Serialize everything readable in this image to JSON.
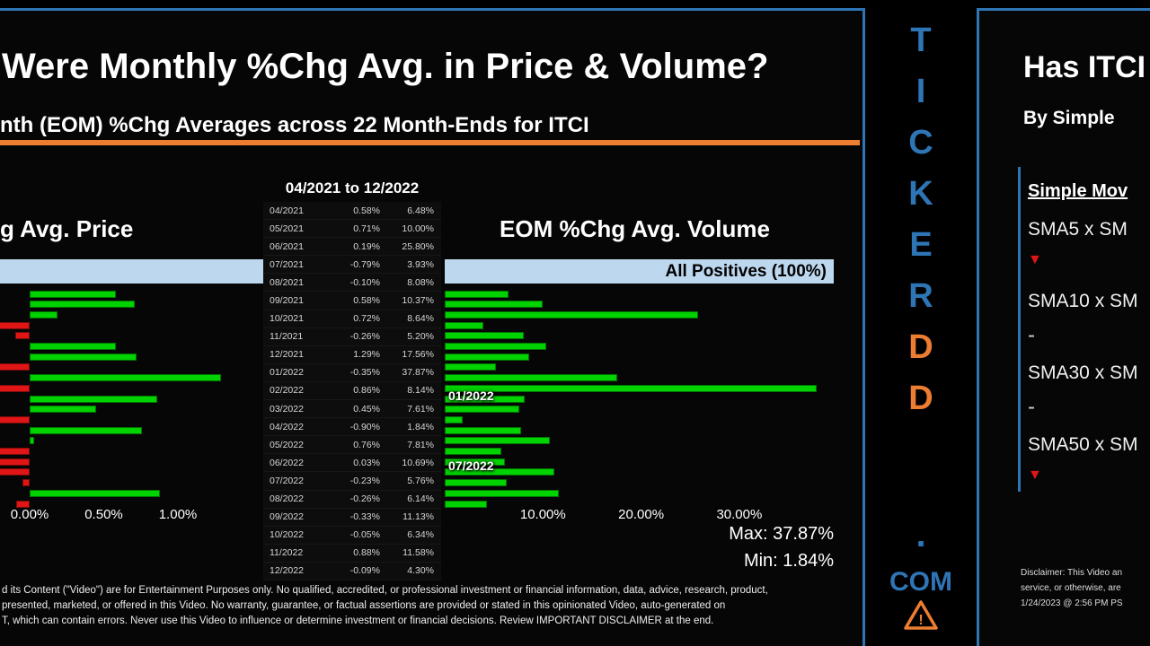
{
  "colors": {
    "accent_blue": "#2E75B6",
    "orange": "#ED7D31",
    "bar_green": "#00D300",
    "bar_red": "#E01515",
    "band_blue": "#BDD7EE"
  },
  "left_panel": {
    "title": "Were Monthly %Chg Avg. in Price & Volume?",
    "subtitle": "nth (EOM) %Chg Averages across 22 Month-Ends for ITCI",
    "table_title": "04/2021 to 12/2022",
    "price_chart_title": "g Avg. Price",
    "volume_chart_title": "EOM %Chg Avg. Volume",
    "volume_band_label": "All Positives (100%)",
    "price_axis_ticks": [
      "0.00%",
      "0.50%",
      "1.00%"
    ],
    "volume_axis_ticks": [
      "10.00%",
      "20.00%",
      "30.00%"
    ],
    "annotation_1": "01/2022",
    "annotation_2": "07/2022",
    "max_label": "Max: 37.87%",
    "min_label": "Min: 1.84%",
    "disclaimer_lines": [
      "d its Content (\"Video\") are for Entertainment Purposes only. No qualified, accredited, or professional investment or financial information, data, advice, research, product,",
      "presented, marketed, or offered in this Video. No warranty, guarantee, or factual assertions are provided or stated in this opinionated Video, auto-generated on",
      "T, which can contain errors. Never use this Video to influence or determine investment or financial decisions. Review IMPORTANT DISCLAIMER at the end."
    ]
  },
  "watermark": {
    "vertical_text": "TICKERDD",
    "ticker_color": "#2E75B6",
    "dd_color": "#ED7D31",
    "dot": ".",
    "bottom": "COM",
    "icon": "warning-triangle-icon"
  },
  "right_panel": {
    "title": "Has ITCI",
    "subtitle": "By Simple",
    "section_header": "Simple Mov",
    "rows": [
      {
        "label": "SMA5 x SM",
        "signal": "down"
      },
      {
        "label": "SMA10 x SM",
        "signal": "dash"
      },
      {
        "label": "SMA30 x SM",
        "signal": "dash"
      },
      {
        "label": "SMA50 x SM",
        "signal": "down"
      }
    ],
    "disclaimer_lines": [
      "Disclaimer: This Video an",
      "service, or otherwise, are",
      "1/24/2023 @ 2:56 PM PS"
    ]
  },
  "chart_data": [
    {
      "type": "bar",
      "orientation": "horizontal",
      "title": "EOM %Chg Avg. Price",
      "categories": [
        "04/2021",
        "05/2021",
        "06/2021",
        "07/2021",
        "08/2021",
        "09/2021",
        "10/2021",
        "11/2021",
        "12/2021",
        "01/2022",
        "02/2022",
        "03/2022",
        "04/2022",
        "05/2022",
        "06/2022",
        "07/2022",
        "08/2022",
        "09/2022",
        "10/2022",
        "11/2022",
        "12/2022"
      ],
      "values": [
        0.58,
        0.71,
        0.19,
        -0.79,
        -0.1,
        0.58,
        0.72,
        -0.26,
        1.29,
        -0.35,
        0.86,
        0.45,
        -0.9,
        0.76,
        0.03,
        -0.23,
        -0.26,
        -0.33,
        -0.05,
        0.88,
        -0.09
      ],
      "tick_values": [
        0,
        0.5,
        1.0
      ],
      "xlim": [
        -0.2,
        1.58
      ],
      "positive_color": "#00D300",
      "negative_color": "#E01515",
      "grid": false,
      "legend": false
    },
    {
      "type": "bar",
      "orientation": "horizontal",
      "title": "EOM %Chg Avg. Volume",
      "categories": [
        "04/2021",
        "05/2021",
        "06/2021",
        "07/2021",
        "08/2021",
        "09/2021",
        "10/2021",
        "11/2021",
        "12/2021",
        "01/2022",
        "02/2022",
        "03/2022",
        "04/2022",
        "05/2022",
        "06/2022",
        "07/2022",
        "08/2022",
        "09/2022",
        "10/2022",
        "11/2022",
        "12/2022"
      ],
      "values": [
        6.48,
        10.0,
        25.8,
        3.93,
        8.08,
        10.37,
        8.64,
        5.2,
        17.56,
        37.87,
        8.14,
        7.61,
        1.84,
        7.81,
        10.69,
        5.76,
        6.14,
        11.13,
        6.34,
        11.58,
        4.3
      ],
      "tick_values": [
        10,
        20,
        30
      ],
      "xlim": [
        0,
        40.3
      ],
      "max": 37.87,
      "min": 1.84,
      "positive_color": "#00D300",
      "grid": false,
      "legend": false
    }
  ]
}
